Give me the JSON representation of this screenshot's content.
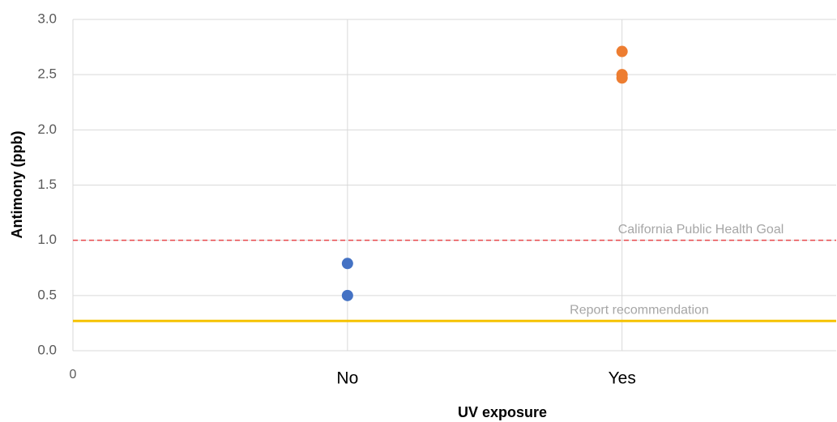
{
  "chart_data": {
    "type": "scatter",
    "x_label": "UV exposure",
    "y_label": "Antimony (ppb)",
    "xlim": [
      0,
      2.78
    ],
    "xticks": [
      0,
      {
        "value": 1,
        "label": "No"
      },
      {
        "value": 2,
        "label": "Yes"
      }
    ],
    "ylim": [
      0,
      3
    ],
    "yticks": [
      {
        "value": 0,
        "label": "0.0"
      },
      {
        "value": 0.5,
        "label": "0.5"
      },
      {
        "value": 1,
        "label": "1.0"
      },
      {
        "value": 1.5,
        "label": "1.5"
      },
      {
        "value": 2,
        "label": "2.0"
      },
      {
        "value": 2.5,
        "label": "2.5"
      },
      {
        "value": 3,
        "label": "3.0"
      }
    ],
    "grid": true,
    "series": [
      {
        "color": "#4472c4",
        "x": [
          1,
          1
        ],
        "values": [
          0.79,
          0.5
        ]
      },
      {
        "color": "#ed7d31",
        "x": [
          2,
          2,
          2
        ],
        "values": [
          2.71,
          2.5,
          2.47
        ]
      }
    ],
    "reference_lines": [
      {
        "label": "California Public Health Goal",
        "value": 1,
        "color": "#e8474b",
        "dashed": true
      },
      {
        "label": "Report recommendation",
        "value": 0.27,
        "color": "#f5c200",
        "dashed": false
      }
    ]
  }
}
